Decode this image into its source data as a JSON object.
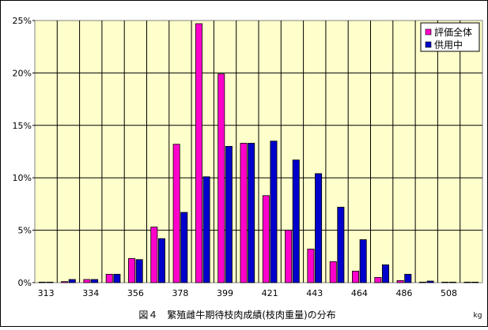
{
  "chart_data": {
    "type": "bar",
    "title": "図４　繁殖雌牛期待枝肉成績(枝肉重量)の分布",
    "xlabel": "",
    "x_unit": "kg",
    "ylabel": "",
    "ylim": [
      0,
      25
    ],
    "y_tick_values": [
      0,
      5,
      10,
      15,
      20,
      25
    ],
    "y_tick_labels": [
      "0%",
      "5%",
      "10%",
      "15%",
      "20%",
      "25%"
    ],
    "y_format": "%",
    "grid": true,
    "legend_position": "top-right",
    "categories": [
      "313",
      "",
      "334",
      "",
      "356",
      "",
      "378",
      "",
      "399",
      "",
      "421",
      "",
      "443",
      "",
      "464",
      "",
      "486",
      "",
      "508",
      ""
    ],
    "series": [
      {
        "name": "評価全体",
        "color": "#ff00cc",
        "values": [
          0.05,
          0.1,
          0.3,
          0.8,
          2.3,
          5.3,
          13.2,
          24.7,
          19.9,
          13.3,
          8.3,
          5.0,
          3.2,
          2.0,
          1.1,
          0.5,
          0.2,
          0.05,
          0.05,
          0.05
        ]
      },
      {
        "name": "供用中",
        "color": "#0000cc",
        "values": [
          0.05,
          0.3,
          0.3,
          0.8,
          2.2,
          4.2,
          6.7,
          10.1,
          13.0,
          13.3,
          13.5,
          11.7,
          10.4,
          7.2,
          4.1,
          1.7,
          0.8,
          0.15,
          0.05,
          0.05
        ]
      }
    ]
  }
}
